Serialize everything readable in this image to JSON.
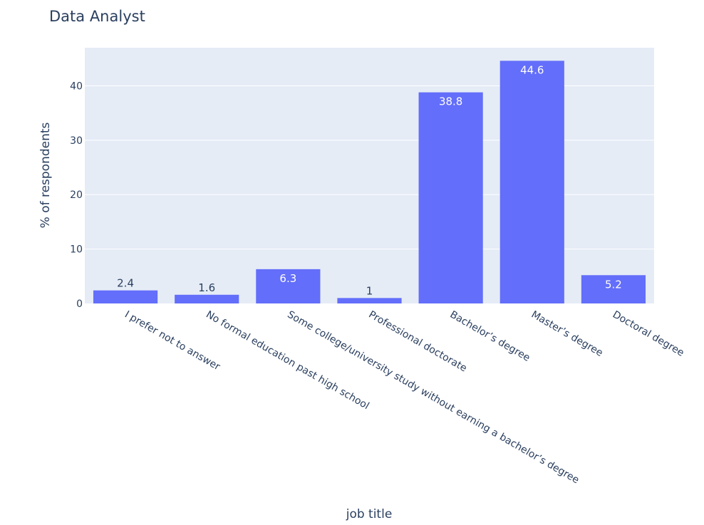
{
  "chart_data": {
    "type": "bar",
    "title": "Data Analyst",
    "xlabel": "job title",
    "ylabel": "% of respondents",
    "categories": [
      "I prefer not to answer",
      "No formal education past high school",
      "Some college/university study without earning a bachelor’s degree",
      "Professional doctorate",
      "Bachelor’s degree",
      "Master’s degree",
      "Doctoral degree"
    ],
    "values": [
      2.4,
      1.6,
      6.3,
      1,
      38.8,
      44.6,
      5.2
    ],
    "data_labels": [
      "2.4",
      "1.6",
      "6.3",
      "1",
      "38.8",
      "44.6",
      "5.2"
    ],
    "ylim": [
      0,
      47
    ],
    "yticks": [
      0,
      10,
      20,
      30,
      40
    ],
    "grid": true,
    "legend": "none",
    "colors": {
      "bar": "#636efa",
      "plot_background": "#e5ecf6",
      "grid": "#ffffff",
      "text": "#2a3f5f"
    }
  }
}
